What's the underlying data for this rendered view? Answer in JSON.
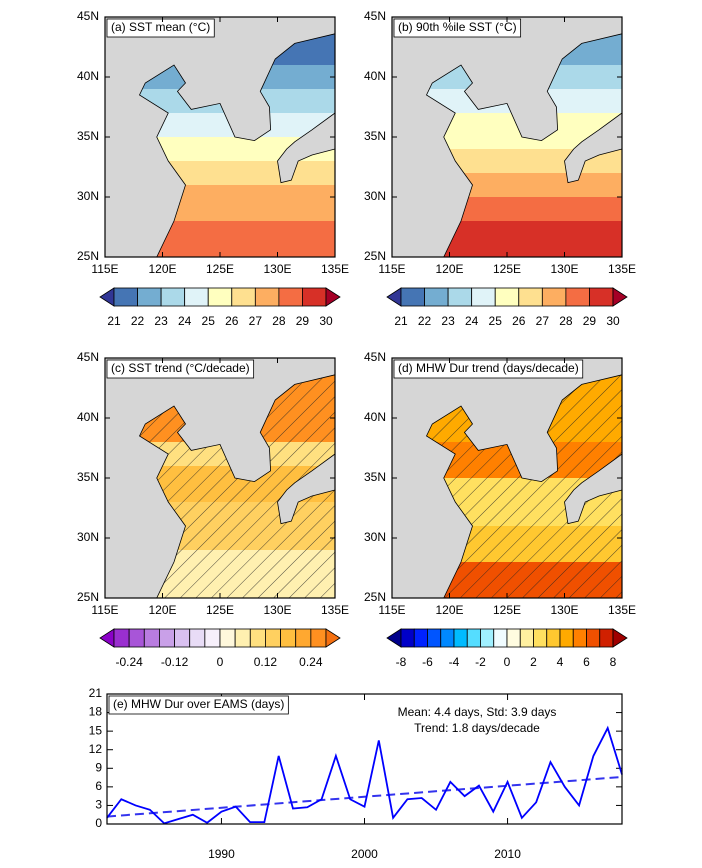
{
  "chart_data": [
    {
      "type": "map",
      "title": "(a) SST mean (°C)",
      "xlim": [
        115,
        135
      ],
      "ylim": [
        25,
        45
      ],
      "xticks": [
        {
          "value": 115,
          "label": "115E"
        },
        {
          "value": 120,
          "label": "120E"
        },
        {
          "value": 125,
          "label": "125E"
        },
        {
          "value": 130,
          "label": "130E"
        },
        {
          "value": 135,
          "label": "135E"
        }
      ],
      "yticks": [
        {
          "value": 25,
          "label": "25N"
        },
        {
          "value": 30,
          "label": "30N"
        },
        {
          "value": 35,
          "label": "35N"
        },
        {
          "value": 40,
          "label": "40N"
        },
        {
          "value": 45,
          "label": "45N"
        }
      ],
      "colorbar": {
        "clim": [
          21,
          30
        ],
        "ticks": [
          21,
          22,
          23,
          24,
          25,
          26,
          27,
          28,
          29,
          30
        ],
        "colors": [
          "#313695",
          "#4575b4",
          "#74add1",
          "#abd9e9",
          "#e0f3f8",
          "#ffffbf",
          "#fee090",
          "#fdae61",
          "#f46d43",
          "#d73027",
          "#a50026"
        ]
      }
    },
    {
      "type": "map",
      "title": "(b) 90th %ile SST (°C)",
      "xlim": [
        115,
        135
      ],
      "ylim": [
        25,
        45
      ],
      "xticks": [
        {
          "value": 115,
          "label": "115E"
        },
        {
          "value": 120,
          "label": "120E"
        },
        {
          "value": 125,
          "label": "125E"
        },
        {
          "value": 130,
          "label": "130E"
        },
        {
          "value": 135,
          "label": "135E"
        }
      ],
      "yticks": [
        {
          "value": 25,
          "label": "25N"
        },
        {
          "value": 30,
          "label": "30N"
        },
        {
          "value": 35,
          "label": "35N"
        },
        {
          "value": 40,
          "label": "40N"
        },
        {
          "value": 45,
          "label": "45N"
        }
      ],
      "colorbar": {
        "clim": [
          21,
          30
        ],
        "ticks": [
          21,
          22,
          23,
          24,
          25,
          26,
          27,
          28,
          29,
          30
        ],
        "colors": [
          "#313695",
          "#4575b4",
          "#74add1",
          "#abd9e9",
          "#e0f3f8",
          "#ffffbf",
          "#fee090",
          "#fdae61",
          "#f46d43",
          "#d73027",
          "#a50026"
        ]
      }
    },
    {
      "type": "map",
      "title": "(c) SST trend (°C/decade)",
      "hatched": true,
      "xlim": [
        115,
        135
      ],
      "ylim": [
        25,
        45
      ],
      "xticks": [
        {
          "value": 115,
          "label": "115E"
        },
        {
          "value": 120,
          "label": "120E"
        },
        {
          "value": 125,
          "label": "125E"
        },
        {
          "value": 130,
          "label": "130E"
        },
        {
          "value": 135,
          "label": "135E"
        }
      ],
      "yticks": [
        {
          "value": 25,
          "label": "25N"
        },
        {
          "value": 30,
          "label": "30N"
        },
        {
          "value": 35,
          "label": "35N"
        },
        {
          "value": 40,
          "label": "40N"
        },
        {
          "value": 45,
          "label": "45N"
        }
      ],
      "colorbar": {
        "clim": [
          -0.28,
          0.28
        ],
        "ticks": [
          -0.24,
          -0.12,
          0,
          0.12,
          0.24
        ],
        "colors": [
          "#8b00c8",
          "#9a2fd0",
          "#a855d8",
          "#b97ce0",
          "#c9a0e8",
          "#d9c0f0",
          "#e8dcf6",
          "#f7f0fb",
          "#fff8dc",
          "#fff0b0",
          "#ffe080",
          "#ffd060",
          "#ffbf40",
          "#ffa830",
          "#ff9020",
          "#f57010"
        ]
      }
    },
    {
      "type": "map",
      "title": "(d) MHW Dur trend (days/decade)",
      "hatched": true,
      "xlim": [
        115,
        135
      ],
      "ylim": [
        25,
        45
      ],
      "xticks": [
        {
          "value": 115,
          "label": "115E"
        },
        {
          "value": 120,
          "label": "120E"
        },
        {
          "value": 125,
          "label": "125E"
        },
        {
          "value": 130,
          "label": "130E"
        },
        {
          "value": 135,
          "label": "135E"
        }
      ],
      "yticks": [
        {
          "value": 25,
          "label": "25N"
        },
        {
          "value": 30,
          "label": "30N"
        },
        {
          "value": 35,
          "label": "35N"
        },
        {
          "value": 40,
          "label": "40N"
        },
        {
          "value": 45,
          "label": "45N"
        }
      ],
      "colorbar": {
        "clim": [
          -8,
          8
        ],
        "ticks": [
          -8,
          -6,
          -4,
          -2,
          0,
          2,
          4,
          6,
          8
        ],
        "colors": [
          "#00008b",
          "#0000c8",
          "#0022ff",
          "#0055ff",
          "#0088ff",
          "#00bbff",
          "#55ddff",
          "#a0f0ff",
          "#f0fcff",
          "#fffce0",
          "#fff0a0",
          "#ffe060",
          "#ffc830",
          "#ffaa00",
          "#ff8000",
          "#f05000",
          "#d02000",
          "#a00000"
        ]
      }
    },
    {
      "type": "line",
      "title": "(e) MHW Dur over EAMS (days)",
      "annotations": [
        "Mean: 4.4 days, Std: 3.9 days",
        "Trend: 1.8 days/decade"
      ],
      "x": [
        1982,
        1983,
        1984,
        1985,
        1986,
        1987,
        1988,
        1989,
        1990,
        1991,
        1992,
        1993,
        1994,
        1995,
        1996,
        1997,
        1998,
        1999,
        2000,
        2001,
        2002,
        2003,
        2004,
        2005,
        2006,
        2007,
        2008,
        2009,
        2010,
        2011,
        2012,
        2013,
        2014,
        2015,
        2016,
        2017,
        2018
      ],
      "values": [
        1.0,
        4.0,
        3.0,
        2.3,
        0.1,
        0.8,
        1.5,
        0.2,
        2.0,
        2.8,
        0.3,
        0.3,
        11.0,
        2.5,
        2.7,
        4.0,
        11.0,
        4.0,
        2.8,
        13.5,
        1.0,
        4.0,
        4.2,
        2.3,
        6.8,
        4.5,
        6.2,
        2.0,
        6.8,
        1.0,
        3.5,
        10.0,
        6.0,
        3.0,
        11.0,
        15.5,
        8.0
      ],
      "color": "#0000ff",
      "trend_line": {
        "x": [
          1982,
          2018
        ],
        "values": [
          1.2,
          7.6
        ],
        "color": "#3333ee"
      },
      "xlim": [
        1982,
        2018
      ],
      "xticks": [
        1990,
        2000,
        2010
      ],
      "ylim": [
        0,
        21
      ],
      "yticks": [
        0,
        3,
        6,
        9,
        12,
        15,
        18,
        21
      ]
    }
  ]
}
